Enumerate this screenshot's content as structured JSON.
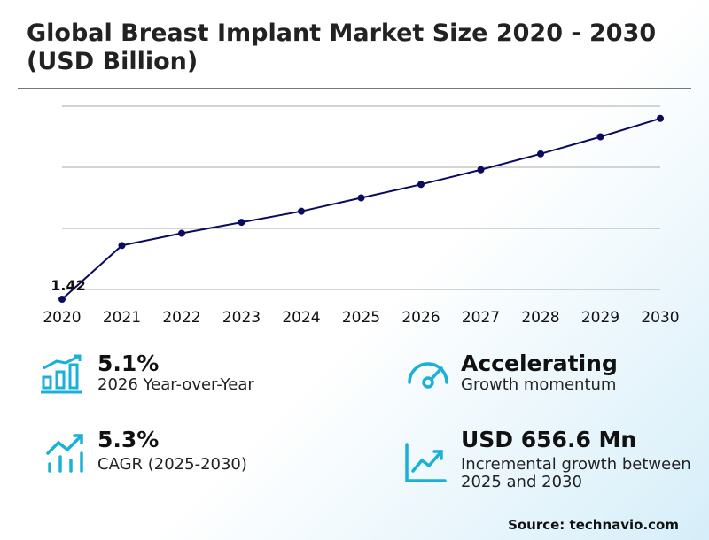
{
  "title": "Global Breast Implant Market Size 2020 - 2030 (USD Billion)",
  "chart_data": {
    "type": "line",
    "title": "Global Breast Implant Market Size 2020 - 2030 (USD Billion)",
    "xlabel": "",
    "ylabel": "USD Billion",
    "categories": [
      "2020",
      "2021",
      "2022",
      "2023",
      "2024",
      "2025",
      "2026",
      "2027",
      "2028",
      "2029",
      "2030"
    ],
    "values": [
      1.42,
      1.86,
      1.96,
      2.05,
      2.14,
      2.25,
      2.36,
      2.48,
      2.61,
      2.75,
      2.9
    ],
    "data_labels": {
      "2020": "1.42"
    },
    "gridlines": [
      1.5,
      2.0,
      2.5,
      3.0
    ],
    "ylim": [
      1.42,
      3.0
    ],
    "color": "#0a0a5e"
  },
  "stats": [
    {
      "value": "5.1%",
      "label": "2026 Year-over-Year",
      "icon": "bar-chart-growth-icon"
    },
    {
      "value": "Accelerating",
      "label": "Growth momentum",
      "icon": "speedometer-icon"
    },
    {
      "value": "5.3%",
      "label": "CAGR (2025-2030)",
      "icon": "trend-bars-icon"
    },
    {
      "value": "USD 656.6 Mn",
      "label": "Incremental growth between 2025 and 2030",
      "icon": "line-chart-up-icon"
    }
  ],
  "accent": "#1ab0d8",
  "source": "Source: technavio.com"
}
